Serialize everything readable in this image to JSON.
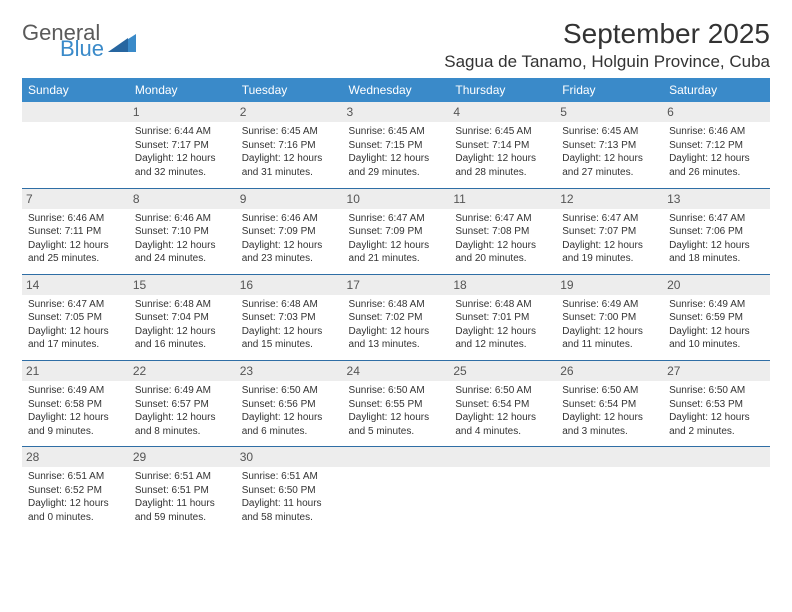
{
  "logo": {
    "word1": "General",
    "word2": "Blue",
    "color1": "#5a5a5a",
    "color2": "#3a8ac9"
  },
  "title": "September 2025",
  "location": "Sagua de Tanamo, Holguin Province, Cuba",
  "header_bg": "#3a8ac9",
  "header_fg": "#ffffff",
  "daynum_bg": "#ededed",
  "row_border": "#2f6ea5",
  "dow": [
    "Sunday",
    "Monday",
    "Tuesday",
    "Wednesday",
    "Thursday",
    "Friday",
    "Saturday"
  ],
  "weeks": [
    [
      null,
      {
        "n": "1",
        "sr": "Sunrise: 6:44 AM",
        "ss": "Sunset: 7:17 PM",
        "d1": "Daylight: 12 hours",
        "d2": "and 32 minutes."
      },
      {
        "n": "2",
        "sr": "Sunrise: 6:45 AM",
        "ss": "Sunset: 7:16 PM",
        "d1": "Daylight: 12 hours",
        "d2": "and 31 minutes."
      },
      {
        "n": "3",
        "sr": "Sunrise: 6:45 AM",
        "ss": "Sunset: 7:15 PM",
        "d1": "Daylight: 12 hours",
        "d2": "and 29 minutes."
      },
      {
        "n": "4",
        "sr": "Sunrise: 6:45 AM",
        "ss": "Sunset: 7:14 PM",
        "d1": "Daylight: 12 hours",
        "d2": "and 28 minutes."
      },
      {
        "n": "5",
        "sr": "Sunrise: 6:45 AM",
        "ss": "Sunset: 7:13 PM",
        "d1": "Daylight: 12 hours",
        "d2": "and 27 minutes."
      },
      {
        "n": "6",
        "sr": "Sunrise: 6:46 AM",
        "ss": "Sunset: 7:12 PM",
        "d1": "Daylight: 12 hours",
        "d2": "and 26 minutes."
      }
    ],
    [
      {
        "n": "7",
        "sr": "Sunrise: 6:46 AM",
        "ss": "Sunset: 7:11 PM",
        "d1": "Daylight: 12 hours",
        "d2": "and 25 minutes."
      },
      {
        "n": "8",
        "sr": "Sunrise: 6:46 AM",
        "ss": "Sunset: 7:10 PM",
        "d1": "Daylight: 12 hours",
        "d2": "and 24 minutes."
      },
      {
        "n": "9",
        "sr": "Sunrise: 6:46 AM",
        "ss": "Sunset: 7:09 PM",
        "d1": "Daylight: 12 hours",
        "d2": "and 23 minutes."
      },
      {
        "n": "10",
        "sr": "Sunrise: 6:47 AM",
        "ss": "Sunset: 7:09 PM",
        "d1": "Daylight: 12 hours",
        "d2": "and 21 minutes."
      },
      {
        "n": "11",
        "sr": "Sunrise: 6:47 AM",
        "ss": "Sunset: 7:08 PM",
        "d1": "Daylight: 12 hours",
        "d2": "and 20 minutes."
      },
      {
        "n": "12",
        "sr": "Sunrise: 6:47 AM",
        "ss": "Sunset: 7:07 PM",
        "d1": "Daylight: 12 hours",
        "d2": "and 19 minutes."
      },
      {
        "n": "13",
        "sr": "Sunrise: 6:47 AM",
        "ss": "Sunset: 7:06 PM",
        "d1": "Daylight: 12 hours",
        "d2": "and 18 minutes."
      }
    ],
    [
      {
        "n": "14",
        "sr": "Sunrise: 6:47 AM",
        "ss": "Sunset: 7:05 PM",
        "d1": "Daylight: 12 hours",
        "d2": "and 17 minutes."
      },
      {
        "n": "15",
        "sr": "Sunrise: 6:48 AM",
        "ss": "Sunset: 7:04 PM",
        "d1": "Daylight: 12 hours",
        "d2": "and 16 minutes."
      },
      {
        "n": "16",
        "sr": "Sunrise: 6:48 AM",
        "ss": "Sunset: 7:03 PM",
        "d1": "Daylight: 12 hours",
        "d2": "and 15 minutes."
      },
      {
        "n": "17",
        "sr": "Sunrise: 6:48 AM",
        "ss": "Sunset: 7:02 PM",
        "d1": "Daylight: 12 hours",
        "d2": "and 13 minutes."
      },
      {
        "n": "18",
        "sr": "Sunrise: 6:48 AM",
        "ss": "Sunset: 7:01 PM",
        "d1": "Daylight: 12 hours",
        "d2": "and 12 minutes."
      },
      {
        "n": "19",
        "sr": "Sunrise: 6:49 AM",
        "ss": "Sunset: 7:00 PM",
        "d1": "Daylight: 12 hours",
        "d2": "and 11 minutes."
      },
      {
        "n": "20",
        "sr": "Sunrise: 6:49 AM",
        "ss": "Sunset: 6:59 PM",
        "d1": "Daylight: 12 hours",
        "d2": "and 10 minutes."
      }
    ],
    [
      {
        "n": "21",
        "sr": "Sunrise: 6:49 AM",
        "ss": "Sunset: 6:58 PM",
        "d1": "Daylight: 12 hours",
        "d2": "and 9 minutes."
      },
      {
        "n": "22",
        "sr": "Sunrise: 6:49 AM",
        "ss": "Sunset: 6:57 PM",
        "d1": "Daylight: 12 hours",
        "d2": "and 8 minutes."
      },
      {
        "n": "23",
        "sr": "Sunrise: 6:50 AM",
        "ss": "Sunset: 6:56 PM",
        "d1": "Daylight: 12 hours",
        "d2": "and 6 minutes."
      },
      {
        "n": "24",
        "sr": "Sunrise: 6:50 AM",
        "ss": "Sunset: 6:55 PM",
        "d1": "Daylight: 12 hours",
        "d2": "and 5 minutes."
      },
      {
        "n": "25",
        "sr": "Sunrise: 6:50 AM",
        "ss": "Sunset: 6:54 PM",
        "d1": "Daylight: 12 hours",
        "d2": "and 4 minutes."
      },
      {
        "n": "26",
        "sr": "Sunrise: 6:50 AM",
        "ss": "Sunset: 6:54 PM",
        "d1": "Daylight: 12 hours",
        "d2": "and 3 minutes."
      },
      {
        "n": "27",
        "sr": "Sunrise: 6:50 AM",
        "ss": "Sunset: 6:53 PM",
        "d1": "Daylight: 12 hours",
        "d2": "and 2 minutes."
      }
    ],
    [
      {
        "n": "28",
        "sr": "Sunrise: 6:51 AM",
        "ss": "Sunset: 6:52 PM",
        "d1": "Daylight: 12 hours",
        "d2": "and 0 minutes."
      },
      {
        "n": "29",
        "sr": "Sunrise: 6:51 AM",
        "ss": "Sunset: 6:51 PM",
        "d1": "Daylight: 11 hours",
        "d2": "and 59 minutes."
      },
      {
        "n": "30",
        "sr": "Sunrise: 6:51 AM",
        "ss": "Sunset: 6:50 PM",
        "d1": "Daylight: 11 hours",
        "d2": "and 58 minutes."
      },
      null,
      null,
      null,
      null
    ]
  ]
}
